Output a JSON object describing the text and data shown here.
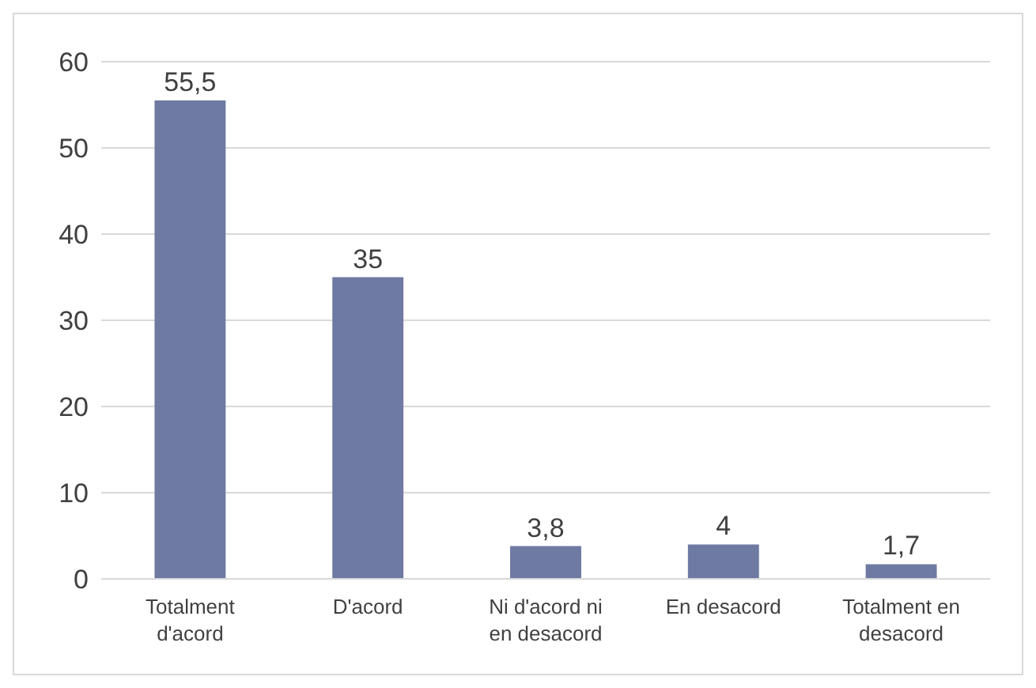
{
  "chart_data": {
    "type": "bar",
    "categories": [
      "Totalment d'acord",
      "D'acord",
      "Ni d'acord ni en desacord",
      "En desacord",
      "Totalment en desacord"
    ],
    "values": [
      55.5,
      35,
      3.8,
      4,
      1.7
    ],
    "value_labels": [
      "55,5",
      "35",
      "3,8",
      "4",
      "1,7"
    ],
    "color": "#6f7aa3",
    "ylim": [
      0,
      60
    ],
    "yticks": [
      0,
      10,
      20,
      30,
      40,
      50,
      60
    ],
    "grid": "y"
  }
}
